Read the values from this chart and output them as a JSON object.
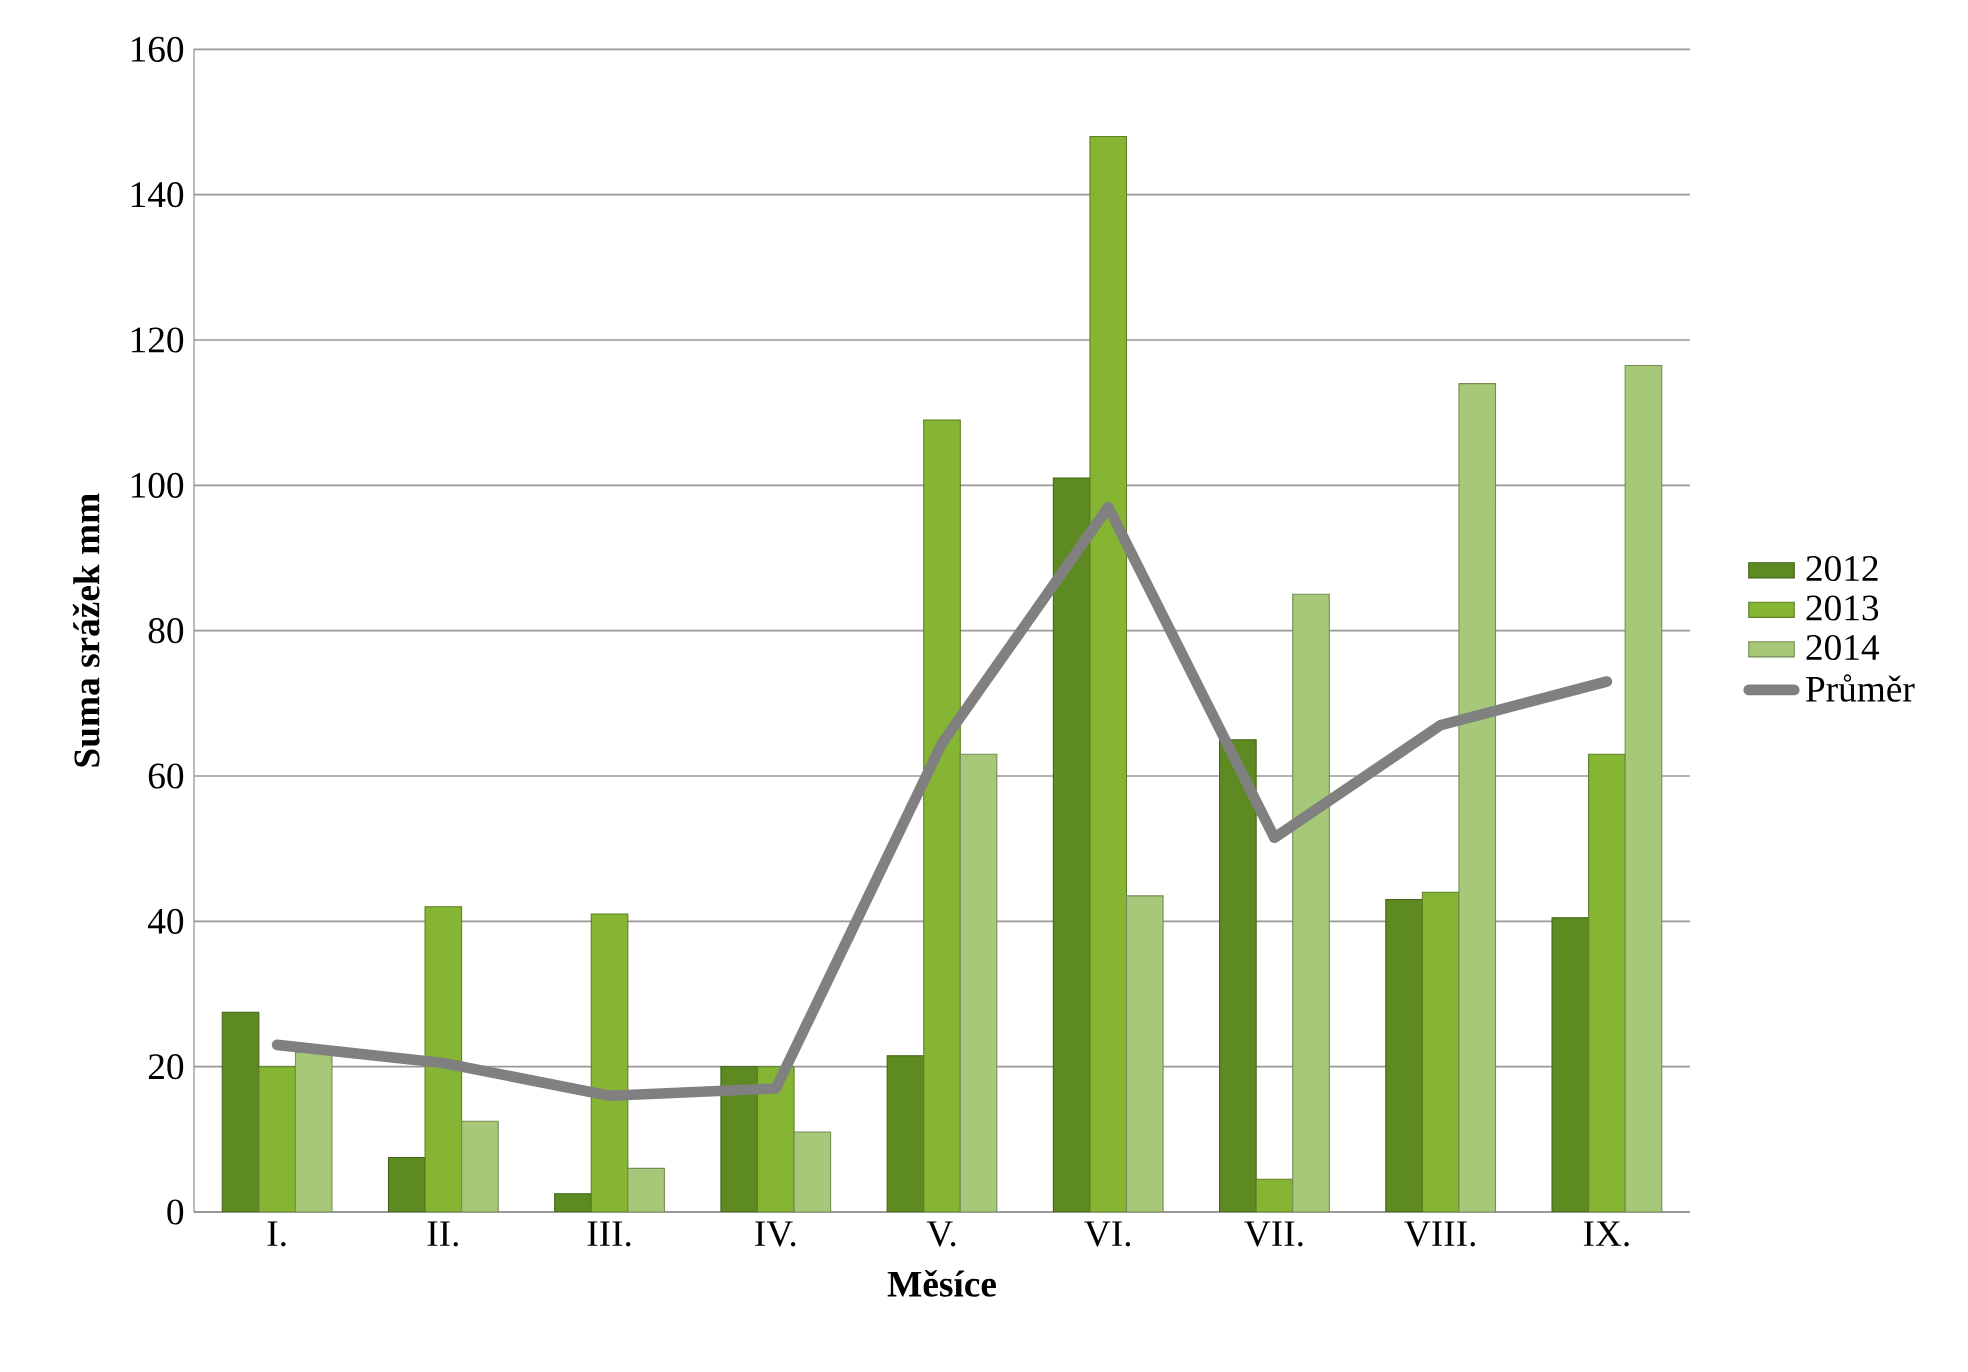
{
  "chart_data": {
    "type": "bar",
    "xlabel": "Měsíce",
    "ylabel": "Suma srážek mm",
    "categories": [
      "I.",
      "II.",
      "III.",
      "IV.",
      "V.",
      "VI.",
      "VII.",
      "VIII.",
      "IX."
    ],
    "series": [
      {
        "name": "2012",
        "color": "#5e8a22",
        "values": [
          27.5,
          7.5,
          2.5,
          20,
          21.5,
          101,
          65,
          43,
          40.5
        ]
      },
      {
        "name": "2013",
        "color": "#86b534",
        "values": [
          20,
          42,
          41,
          20,
          109,
          148,
          4.5,
          44,
          63
        ]
      },
      {
        "name": "2014",
        "color": "#a6c878",
        "values": [
          22,
          12.5,
          6,
          11,
          63,
          43.5,
          85,
          114,
          116.5
        ]
      },
      {
        "name": "Průměr",
        "type": "line",
        "color": "#808080",
        "values": [
          23,
          20.5,
          16,
          17,
          64.5,
          97,
          51.5,
          67,
          73
        ]
      }
    ],
    "ylim": [
      0,
      160
    ],
    "yticks": [
      0,
      20,
      40,
      60,
      80,
      100,
      120,
      140,
      160
    ],
    "grid": "y",
    "legend": "right"
  }
}
